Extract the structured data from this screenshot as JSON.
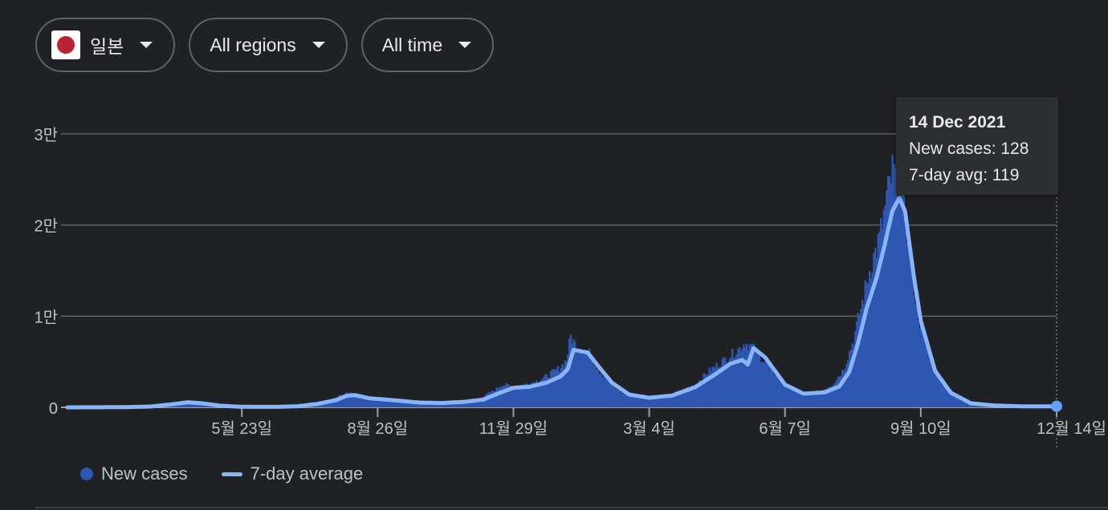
{
  "filters": {
    "country": {
      "label": "일본",
      "flag_icon": "japan-flag-icon"
    },
    "region": {
      "label": "All regions"
    },
    "time": {
      "label": "All time"
    }
  },
  "tooltip": {
    "date": "14 Dec 2021",
    "new_cases": "New cases: 128",
    "avg": "7-day avg: 119"
  },
  "legend": {
    "new_cases": "New cases",
    "avg": "7-day average"
  },
  "colors": {
    "bars": "#2f56b0",
    "avg_line": "#8ab4f8",
    "grid": "#5f6368",
    "background": "#202124"
  },
  "chart_data": {
    "type": "area",
    "title": "",
    "xlabel": "",
    "ylabel": "",
    "ylim": [
      0,
      30000
    ],
    "yticks": [
      {
        "value": 0,
        "label": "0"
      },
      {
        "value": 10000,
        "label": "1만"
      },
      {
        "value": 20000,
        "label": "2만"
      },
      {
        "value": 30000,
        "label": "3만"
      }
    ],
    "xticks": [
      {
        "date": "2020-05-23",
        "label": "5월 23일"
      },
      {
        "date": "2020-08-26",
        "label": "8월 26일"
      },
      {
        "date": "2020-11-29",
        "label": "11월 29일"
      },
      {
        "date": "2021-03-04",
        "label": "3월 4일"
      },
      {
        "date": "2021-06-07",
        "label": "6월 7일"
      },
      {
        "date": "2021-09-10",
        "label": "9월 10일"
      },
      {
        "date": "2021-12-14",
        "label": "12월 14일"
      }
    ],
    "x_start": "2020-01-22",
    "x_end": "2021-12-14",
    "series": [
      {
        "name": "New cases",
        "points": [
          [
            "2020-01-22",
            0
          ],
          [
            "2020-03-01",
            30
          ],
          [
            "2020-03-20",
            120
          ],
          [
            "2020-04-05",
            400
          ],
          [
            "2020-04-12",
            650
          ],
          [
            "2020-04-20",
            500
          ],
          [
            "2020-05-01",
            250
          ],
          [
            "2020-05-15",
            60
          ],
          [
            "2020-06-01",
            40
          ],
          [
            "2020-06-20",
            80
          ],
          [
            "2020-07-01",
            150
          ],
          [
            "2020-07-15",
            450
          ],
          [
            "2020-07-25",
            850
          ],
          [
            "2020-08-01",
            1400
          ],
          [
            "2020-08-07",
            1600
          ],
          [
            "2020-08-15",
            1100
          ],
          [
            "2020-08-26",
            850
          ],
          [
            "2020-09-10",
            650
          ],
          [
            "2020-09-25",
            500
          ],
          [
            "2020-10-10",
            550
          ],
          [
            "2020-10-25",
            700
          ],
          [
            "2020-11-05",
            1000
          ],
          [
            "2020-11-15",
            1800
          ],
          [
            "2020-11-21",
            2500
          ],
          [
            "2020-11-29",
            2300
          ],
          [
            "2020-12-10",
            2600
          ],
          [
            "2020-12-20",
            3200
          ],
          [
            "2020-12-31",
            4300
          ],
          [
            "2021-01-05",
            5200
          ],
          [
            "2021-01-08",
            7800
          ],
          [
            "2021-01-12",
            6600
          ],
          [
            "2021-01-20",
            6200
          ],
          [
            "2021-01-28",
            4000
          ],
          [
            "2021-02-05",
            2500
          ],
          [
            "2021-02-15",
            1400
          ],
          [
            "2021-03-04",
            1000
          ],
          [
            "2021-03-20",
            1400
          ],
          [
            "2021-04-05",
            2500
          ],
          [
            "2021-04-15",
            4000
          ],
          [
            "2021-04-28",
            5500
          ],
          [
            "2021-05-05",
            6300
          ],
          [
            "2021-05-10",
            7100
          ],
          [
            "2021-05-15",
            6600
          ],
          [
            "2021-05-25",
            4800
          ],
          [
            "2021-06-07",
            2400
          ],
          [
            "2021-06-20",
            1500
          ],
          [
            "2021-07-01",
            1700
          ],
          [
            "2021-07-10",
            2500
          ],
          [
            "2021-07-18",
            4200
          ],
          [
            "2021-07-25",
            7500
          ],
          [
            "2021-07-31",
            11500
          ],
          [
            "2021-08-05",
            15000
          ],
          [
            "2021-08-12",
            18500
          ],
          [
            "2021-08-18",
            23500
          ],
          [
            "2021-08-21",
            25800
          ],
          [
            "2021-08-26",
            24500
          ],
          [
            "2021-09-01",
            19000
          ],
          [
            "2021-09-06",
            12000
          ],
          [
            "2021-09-10",
            8500
          ],
          [
            "2021-09-20",
            4000
          ],
          [
            "2021-10-01",
            1800
          ],
          [
            "2021-10-15",
            500
          ],
          [
            "2021-11-01",
            250
          ],
          [
            "2021-11-20",
            120
          ],
          [
            "2021-12-14",
            128
          ]
        ]
      },
      {
        "name": "7-day average",
        "points": [
          [
            "2020-01-22",
            0
          ],
          [
            "2020-03-01",
            20
          ],
          [
            "2020-03-20",
            90
          ],
          [
            "2020-04-05",
            350
          ],
          [
            "2020-04-15",
            560
          ],
          [
            "2020-04-25",
            450
          ],
          [
            "2020-05-08",
            180
          ],
          [
            "2020-05-23",
            60
          ],
          [
            "2020-06-15",
            50
          ],
          [
            "2020-07-01",
            120
          ],
          [
            "2020-07-15",
            380
          ],
          [
            "2020-07-28",
            800
          ],
          [
            "2020-08-04",
            1250
          ],
          [
            "2020-08-10",
            1350
          ],
          [
            "2020-08-20",
            1000
          ],
          [
            "2020-09-05",
            800
          ],
          [
            "2020-09-25",
            520
          ],
          [
            "2020-10-10",
            480
          ],
          [
            "2020-10-25",
            600
          ],
          [
            "2020-11-08",
            850
          ],
          [
            "2020-11-18",
            1500
          ],
          [
            "2020-11-29",
            2150
          ],
          [
            "2020-12-10",
            2250
          ],
          [
            "2020-12-22",
            2700
          ],
          [
            "2021-01-01",
            3400
          ],
          [
            "2021-01-06",
            4200
          ],
          [
            "2021-01-10",
            6300
          ],
          [
            "2021-01-14",
            6200
          ],
          [
            "2021-01-20",
            6000
          ],
          [
            "2021-01-28",
            4400
          ],
          [
            "2021-02-06",
            2700
          ],
          [
            "2021-02-18",
            1400
          ],
          [
            "2021-03-04",
            1050
          ],
          [
            "2021-03-20",
            1300
          ],
          [
            "2021-04-05",
            2200
          ],
          [
            "2021-04-18",
            3500
          ],
          [
            "2021-04-30",
            4800
          ],
          [
            "2021-05-08",
            5200
          ],
          [
            "2021-05-12",
            4700
          ],
          [
            "2021-05-16",
            6500
          ],
          [
            "2021-05-24",
            5500
          ],
          [
            "2021-06-07",
            2500
          ],
          [
            "2021-06-20",
            1500
          ],
          [
            "2021-07-05",
            1650
          ],
          [
            "2021-07-15",
            2300
          ],
          [
            "2021-07-22",
            3900
          ],
          [
            "2021-07-28",
            7000
          ],
          [
            "2021-08-03",
            10800
          ],
          [
            "2021-08-10",
            14200
          ],
          [
            "2021-08-16",
            18000
          ],
          [
            "2021-08-21",
            21500
          ],
          [
            "2021-08-26",
            23000
          ],
          [
            "2021-08-30",
            21500
          ],
          [
            "2021-09-05",
            14500
          ],
          [
            "2021-09-10",
            9500
          ],
          [
            "2021-09-20",
            4000
          ],
          [
            "2021-10-01",
            1600
          ],
          [
            "2021-10-15",
            450
          ],
          [
            "2021-11-01",
            200
          ],
          [
            "2021-11-20",
            110
          ],
          [
            "2021-12-14",
            119
          ]
        ]
      }
    ],
    "highlight": {
      "date": "2021-12-14",
      "new_cases": 128,
      "avg": 119
    }
  }
}
